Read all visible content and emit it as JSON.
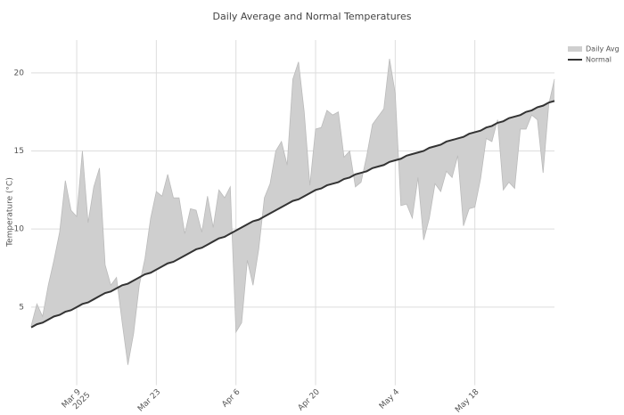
{
  "chart_data": {
    "type": "line",
    "title": "Daily Average and Normal Temperatures",
    "y_label": "Temperature (°C)",
    "x": [
      "2025-03-01",
      "2025-03-02",
      "2025-03-03",
      "2025-03-04",
      "2025-03-05",
      "2025-03-06",
      "2025-03-07",
      "2025-03-08",
      "2025-03-09",
      "2025-03-10",
      "2025-03-11",
      "2025-03-12",
      "2025-03-13",
      "2025-03-14",
      "2025-03-15",
      "2025-03-16",
      "2025-03-17",
      "2025-03-18",
      "2025-03-19",
      "2025-03-20",
      "2025-03-21",
      "2025-03-22",
      "2025-03-23",
      "2025-03-24",
      "2025-03-25",
      "2025-03-26",
      "2025-03-27",
      "2025-03-28",
      "2025-03-29",
      "2025-03-30",
      "2025-03-31",
      "2025-04-01",
      "2025-04-02",
      "2025-04-03",
      "2025-04-04",
      "2025-04-05",
      "2025-04-06",
      "2025-04-07",
      "2025-04-08",
      "2025-04-09",
      "2025-04-10",
      "2025-04-11",
      "2025-04-12",
      "2025-04-13",
      "2025-04-14",
      "2025-04-15",
      "2025-04-16",
      "2025-04-17",
      "2025-04-18",
      "2025-04-19",
      "2025-04-20",
      "2025-04-21",
      "2025-04-22",
      "2025-04-23",
      "2025-04-24",
      "2025-04-25",
      "2025-04-26",
      "2025-04-27",
      "2025-04-28",
      "2025-04-29",
      "2025-04-30",
      "2025-05-01",
      "2025-05-02",
      "2025-05-03",
      "2025-05-04",
      "2025-05-05",
      "2025-05-06",
      "2025-05-07",
      "2025-05-08",
      "2025-05-09",
      "2025-05-10",
      "2025-05-11",
      "2025-05-12",
      "2025-05-13",
      "2025-05-14",
      "2025-05-15",
      "2025-05-16",
      "2025-05-17",
      "2025-05-18",
      "2025-05-19",
      "2025-05-20",
      "2025-05-21",
      "2025-05-22",
      "2025-05-23",
      "2025-05-24",
      "2025-05-25",
      "2025-05-26",
      "2025-05-27",
      "2025-05-28",
      "2025-05-29",
      "2025-05-30",
      "2025-05-31",
      "2025-06-01"
    ],
    "series": [
      {
        "name": "Daily Avg",
        "color": "#bbbbbb",
        "fill": "#cfcfcf",
        "values": [
          3.8,
          5.2,
          4.4,
          6.4,
          8.0,
          9.8,
          13.1,
          11.2,
          10.8,
          15.0,
          10.4,
          12.7,
          13.9,
          7.7,
          6.4,
          6.9,
          4.0,
          1.3,
          3.3,
          6.4,
          8.1,
          10.7,
          12.4,
          12.1,
          13.5,
          12.0,
          12.0,
          9.7,
          11.3,
          11.2,
          9.8,
          12.1,
          10.1,
          12.5,
          12.0,
          12.7,
          3.4,
          4.0,
          8.0,
          6.4,
          8.7,
          12.0,
          12.9,
          15.0,
          15.6,
          14.1,
          19.6,
          20.7,
          17.5,
          12.8,
          16.4,
          16.5,
          17.6,
          17.3,
          17.5,
          14.6,
          15.0,
          12.7,
          13.0,
          14.7,
          16.7,
          17.2,
          17.7,
          20.9,
          18.7,
          11.5,
          11.6,
          10.7,
          13.3,
          9.3,
          10.7,
          12.9,
          12.4,
          13.7,
          13.3,
          14.7,
          10.2,
          11.3,
          11.4,
          13.2,
          15.8,
          15.6,
          17.0,
          12.5,
          13.0,
          12.6,
          16.4,
          16.4,
          17.3,
          17.0,
          13.6,
          18.0,
          19.6
        ]
      },
      {
        "name": "Normal",
        "color": "#333333",
        "values": [
          3.7,
          3.9,
          4.0,
          4.2,
          4.4,
          4.5,
          4.7,
          4.8,
          5.0,
          5.2,
          5.3,
          5.5,
          5.7,
          5.9,
          6.0,
          6.2,
          6.4,
          6.5,
          6.7,
          6.9,
          7.1,
          7.2,
          7.4,
          7.6,
          7.8,
          7.9,
          8.1,
          8.3,
          8.5,
          8.7,
          8.8,
          9.0,
          9.2,
          9.4,
          9.5,
          9.7,
          9.9,
          10.1,
          10.3,
          10.5,
          10.6,
          10.8,
          11.0,
          11.2,
          11.4,
          11.6,
          11.8,
          11.9,
          12.1,
          12.3,
          12.5,
          12.6,
          12.8,
          12.9,
          13.0,
          13.2,
          13.3,
          13.5,
          13.6,
          13.7,
          13.9,
          14.0,
          14.1,
          14.3,
          14.4,
          14.5,
          14.7,
          14.8,
          14.9,
          15.0,
          15.2,
          15.3,
          15.4,
          15.6,
          15.7,
          15.8,
          15.9,
          16.1,
          16.2,
          16.3,
          16.5,
          16.6,
          16.8,
          16.9,
          17.1,
          17.2,
          17.3,
          17.5,
          17.6,
          17.8,
          17.9,
          18.1,
          18.2
        ]
      }
    ],
    "xlim": [
      "2025-03-01",
      "2025-06-01"
    ],
    "xticks": [
      {
        "value": "2025-03-09",
        "label": "Mar 9",
        "year": "2025"
      },
      {
        "value": "2025-03-23",
        "label": "Mar 23"
      },
      {
        "value": "2025-04-06",
        "label": "Apr 6"
      },
      {
        "value": "2025-04-20",
        "label": "Apr 20"
      },
      {
        "value": "2025-05-04",
        "label": "May 4"
      },
      {
        "value": "2025-05-18",
        "label": "May 18"
      }
    ],
    "ylim": [
      0,
      22.1
    ],
    "yticks": [
      5,
      10,
      15,
      20
    ],
    "grid": true,
    "legend": "top-right"
  }
}
